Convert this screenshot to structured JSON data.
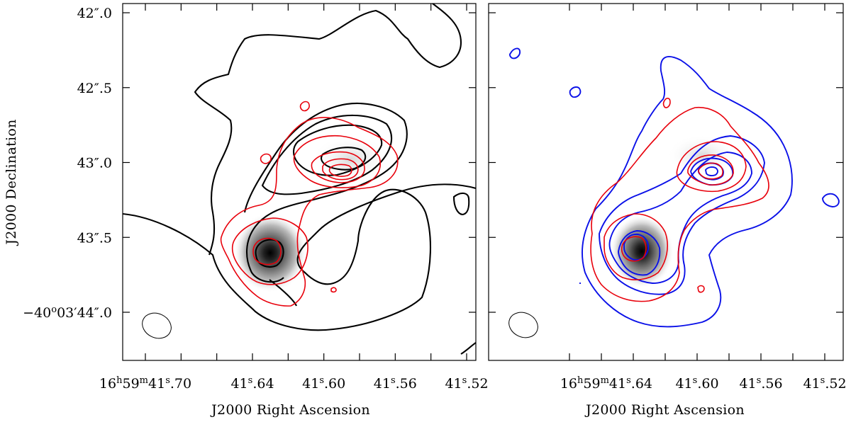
{
  "chart_data": [
    {
      "type": "contour",
      "panel": "left",
      "image": "grayscale continuum map",
      "colors": {
        "black": "#000000",
        "red": "#e8000b"
      },
      "xlabel": "J2000 Right Ascension",
      "ylabel": "J2000 Declination",
      "xticks": [
        {
          "pre": "16",
          "sup1": "h",
          "mid": "59",
          "sup2": "m",
          "post": "41",
          "sup3": "s",
          "end": ".70"
        },
        {
          "pre": "",
          "sup1": "",
          "mid": "",
          "sup2": "",
          "post": "41",
          "sup3": "s",
          "end": ".64"
        },
        {
          "pre": "",
          "sup1": "",
          "mid": "",
          "sup2": "",
          "post": "41",
          "sup3": "s",
          "end": ".60"
        },
        {
          "pre": "",
          "sup1": "",
          "mid": "",
          "sup2": "",
          "post": "41",
          "sup3": "s",
          "end": ".56"
        },
        {
          "pre": "",
          "sup1": "",
          "mid": "",
          "sup2": "",
          "post": "41",
          "sup3": "s",
          "end": ".52"
        }
      ],
      "yticks": [
        {
          "pre": "42",
          "mark": "″",
          "post": ".0"
        },
        {
          "pre": "42",
          "mark": "″",
          "post": ".5"
        },
        {
          "pre": "43",
          "mark": "″",
          "post": ".0"
        },
        {
          "pre": "43",
          "mark": "″",
          "post": ".5"
        },
        {
          "pre": "−40",
          "sup": "o",
          "mid": "03′44",
          "mark": "″",
          "post": ".0"
        }
      ],
      "peak": {
        "ra_s": 41.628,
        "dec_arcsec": 43.62
      },
      "secondary_peak": {
        "ra_s": 41.585,
        "dec_arcsec": 43.05
      }
    },
    {
      "type": "contour",
      "panel": "right",
      "image": "grayscale continuum map",
      "colors": {
        "blue": "#0a10e8",
        "red": "#e8000b"
      },
      "xlabel": "J2000 Right Ascension",
      "xticks": [
        {
          "pre": "16",
          "sup1": "h",
          "mid": "59",
          "sup2": "m",
          "post": "41",
          "sup3": "s",
          "end": ".64"
        },
        {
          "pre": "",
          "sup1": "",
          "mid": "",
          "sup2": "",
          "post": "41",
          "sup3": "s",
          "end": ".60"
        },
        {
          "pre": "",
          "sup1": "",
          "mid": "",
          "sup2": "",
          "post": "41",
          "sup3": "s",
          "end": ".56"
        },
        {
          "pre": "",
          "sup1": "",
          "mid": "",
          "sup2": "",
          "post": "41",
          "sup3": "s",
          "end": ".52"
        }
      ],
      "peak": {
        "ra_s": 41.628,
        "dec_arcsec": 43.62
      },
      "secondary_peak": {
        "ra_s": 41.585,
        "dec_arcsec": 43.05
      }
    }
  ]
}
